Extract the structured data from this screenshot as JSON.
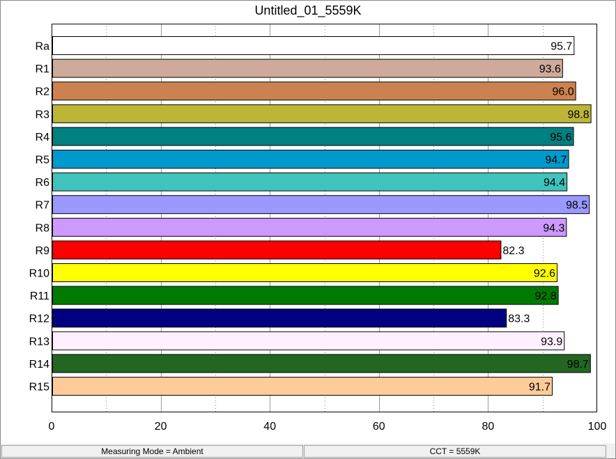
{
  "chart_data": {
    "type": "bar",
    "orientation": "horizontal",
    "title": "Untitled_01_5559K",
    "xlabel": "",
    "ylabel": "",
    "xlim": [
      0,
      100
    ],
    "x_ticks": [
      "0",
      "20",
      "40",
      "60",
      "80",
      "100"
    ],
    "grid": true,
    "categories": [
      "Ra",
      "R1",
      "R2",
      "R3",
      "R4",
      "R5",
      "R6",
      "R7",
      "R8",
      "R9",
      "R10",
      "R11",
      "R12",
      "R13",
      "R14",
      "R15"
    ],
    "values": [
      95.7,
      93.6,
      96.0,
      98.8,
      95.6,
      94.7,
      94.4,
      98.5,
      94.3,
      82.3,
      92.6,
      92.8,
      83.3,
      93.9,
      98.7,
      91.7
    ],
    "value_labels": [
      "95.7",
      "93.6",
      "96.0",
      "98.8",
      "95.6",
      "94.7",
      "94.4",
      "98.5",
      "94.3",
      "82.3",
      "92.6",
      "92.8",
      "83.3",
      "93.9",
      "98.7",
      "91.7"
    ],
    "colors": [
      "#ffffff",
      "#ceaa9a",
      "#cc8250",
      "#bdb536",
      "#008080",
      "#0099cc",
      "#3fc3bc",
      "#9999ff",
      "#cc99ff",
      "#ff0000",
      "#ffff00",
      "#007a00",
      "#000080",
      "#fff0ff",
      "#226622",
      "#ffcc99"
    ]
  },
  "status_bar": {
    "measuring_mode": "Measuring Mode = Ambient",
    "cct": "CCT = 5559K"
  }
}
